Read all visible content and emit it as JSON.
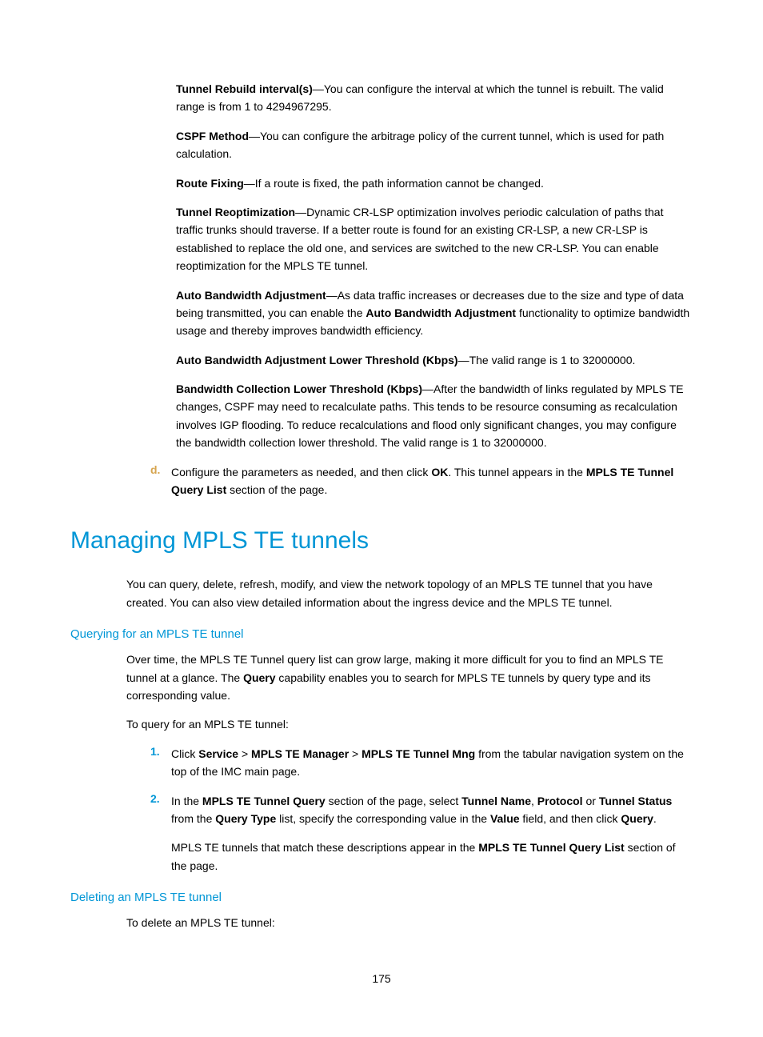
{
  "definitions": {
    "tunnel_rebuild": {
      "term": "Tunnel Rebuild interval(s)",
      "text": "—You can configure the interval at which the tunnel is rebuilt. The valid range is from 1 to 4294967295."
    },
    "cspf_method": {
      "term": "CSPF Method",
      "text": "—You can configure the arbitrage policy of the current tunnel, which is used for path calculation."
    },
    "route_fixing": {
      "term": "Route Fixing",
      "text": "—If a route is fixed, the path information cannot be changed."
    },
    "tunnel_reopt": {
      "term": "Tunnel Reoptimization",
      "text": "—Dynamic CR-LSP optimization involves periodic calculation of paths that traffic trunks should traverse. If a better route is found for an existing CR-LSP, a new CR-LSP is established to replace the old one, and services are switched to the new CR-LSP. You can enable reoptimization for the MPLS TE tunnel."
    },
    "auto_bw": {
      "term": "Auto Bandwidth Adjustment",
      "text_pre": "—As data traffic increases or decreases due to the size and type of data being transmitted, you can enable the ",
      "term_inline": "Auto Bandwidth Adjustment",
      "text_post": " functionality to optimize bandwidth usage and thereby improves bandwidth efficiency."
    },
    "auto_bw_lower": {
      "term": "Auto Bandwidth Adjustment Lower Threshold (Kbps)",
      "text": "—The valid range is 1 to 32000000."
    },
    "bw_collection": {
      "term": "Bandwidth Collection Lower Threshold (Kbps)",
      "text": "—After the bandwidth of links regulated by MPLS TE changes, CSPF may need to recalculate paths. This tends to be resource consuming as recalculation involves IGP flooding. To reduce recalculations and flood only significant changes, you may configure the bandwidth collection lower threshold. The valid range is 1 to 32000000."
    }
  },
  "step_d": {
    "marker": "d.",
    "text_pre": "Configure the parameters as needed, and then click ",
    "ok": "OK",
    "text_mid": ". This tunnel appears in the ",
    "mplste": "MPLS TE Tunnel Query List",
    "text_post": " section of the page."
  },
  "heading_main": "Managing MPLS TE tunnels",
  "intro_para": "You can query, delete, refresh, modify, and view the network topology of an MPLS TE tunnel that you have created. You can also view detailed information about the ingress device and the MPLS TE tunnel.",
  "section_query": {
    "heading": "Querying for an MPLS TE tunnel",
    "para1_pre": "Over time, the MPLS TE Tunnel query list can grow large, making it more difficult for you to find an MPLS TE tunnel at a glance. The ",
    "para1_bold": "Query",
    "para1_post": " capability enables you to search for MPLS TE tunnels by query type and its corresponding value.",
    "para2": "To query for an MPLS TE tunnel:",
    "step1": {
      "marker": "1.",
      "pre": "Click ",
      "b1": "Service",
      "sep1": " > ",
      "b2": "MPLS TE Manager",
      "sep2": " > ",
      "b3": "MPLS TE Tunnel Mng",
      "post": " from the tabular navigation system on the top of the IMC main page."
    },
    "step2": {
      "marker": "2.",
      "pre": "In the ",
      "b1": "MPLS TE Tunnel Query",
      "mid1": " section of the page, select ",
      "b2": "Tunnel Name",
      "sep1": ", ",
      "b3": "Protocol",
      "sep2": " or ",
      "b4": "Tunnel Status",
      "mid2": " from the ",
      "b5": "Query Type",
      "mid3": " list, specify the corresponding value in the ",
      "b6": "Value",
      "mid4": " field, and then click ",
      "b7": "Query",
      "post": "."
    },
    "step2_sub_pre": "MPLS TE tunnels that match these descriptions appear in the ",
    "step2_sub_bold": "MPLS TE Tunnel Query List",
    "step2_sub_post": " section of the page."
  },
  "section_delete": {
    "heading": "Deleting an MPLS TE tunnel",
    "para1": "To delete an MPLS TE tunnel:"
  },
  "page_number": "175"
}
